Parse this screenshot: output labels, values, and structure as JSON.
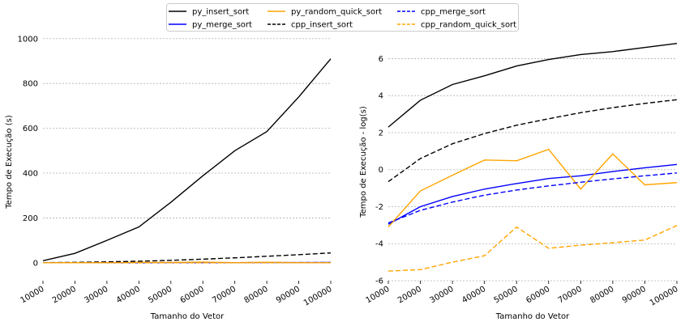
{
  "chart_data": [
    {
      "type": "line",
      "xlabel": "Tamanho do Vetor",
      "ylabel": "Tempo de Execução (s)",
      "x": [
        10000,
        20000,
        30000,
        40000,
        50000,
        60000,
        70000,
        80000,
        90000,
        100000
      ],
      "xlim": [
        10000,
        100000
      ],
      "ylim": [
        -80,
        1010
      ],
      "yticks": [
        0,
        200,
        400,
        600,
        800,
        1000
      ],
      "grid": "y",
      "series": [
        {
          "name": "py_insert_sort",
          "color": "#000000",
          "dash": "solid",
          "values": [
            9,
            42,
            100,
            160,
            270,
            388,
            500,
            585,
            740,
            910
          ]
        },
        {
          "name": "py_merge_sort",
          "color": "#0000ff",
          "dash": "solid",
          "values": [
            0.05,
            0.1,
            0.2,
            0.3,
            0.4,
            0.5,
            0.6,
            0.8,
            1.0,
            1.3
          ]
        },
        {
          "name": "py_random_quick_sort",
          "color": "#ffa500",
          "dash": "solid",
          "values": [
            0.05,
            0.3,
            0.7,
            1.7,
            1.6,
            3.0,
            0.3,
            2.3,
            0.4,
            0.5
          ]
        },
        {
          "name": "cpp_insert_sort",
          "color": "#000000",
          "dash": "dashed",
          "values": [
            0.5,
            1.8,
            4,
            7,
            11,
            16,
            22,
            29,
            36,
            44
          ]
        },
        {
          "name": "cpp_merge_sort",
          "color": "#0000ff",
          "dash": "dashed",
          "values": [
            0.05,
            0.1,
            0.17,
            0.25,
            0.33,
            0.41,
            0.5,
            0.6,
            0.7,
            0.8
          ]
        },
        {
          "name": "cpp_random_quick_sort",
          "color": "#ffa500",
          "dash": "dashed",
          "values": [
            0.004,
            0.005,
            0.007,
            0.009,
            0.045,
            0.014,
            0.017,
            0.019,
            0.022,
            0.05
          ]
        }
      ]
    },
    {
      "type": "line",
      "xlabel": "Tamanho do Vetor",
      "ylabel": "Tempo de Execução - log(s)",
      "x": [
        10000,
        20000,
        30000,
        40000,
        50000,
        60000,
        70000,
        80000,
        90000,
        100000
      ],
      "xlim": [
        10000,
        100000
      ],
      "ylim": [
        -6,
        7.2
      ],
      "yticks": [
        -6,
        -4,
        -2,
        0,
        2,
        4,
        6
      ],
      "grid": "y",
      "series": [
        {
          "name": "py_insert_sort",
          "color": "#000000",
          "dash": "solid",
          "values": [
            2.3,
            3.75,
            4.6,
            5.07,
            5.6,
            5.95,
            6.22,
            6.38,
            6.6,
            6.82
          ]
        },
        {
          "name": "py_merge_sort",
          "color": "#0000ff",
          "dash": "solid",
          "values": [
            -2.95,
            -2.0,
            -1.45,
            -1.05,
            -0.75,
            -0.48,
            -0.33,
            -0.1,
            0.1,
            0.28
          ]
        },
        {
          "name": "py_random_quick_sort",
          "color": "#ffa500",
          "dash": "solid",
          "values": [
            -3.1,
            -1.15,
            -0.3,
            0.52,
            0.48,
            1.1,
            -1.05,
            0.85,
            -0.82,
            -0.7
          ]
        },
        {
          "name": "cpp_insert_sort",
          "color": "#000000",
          "dash": "dashed",
          "values": [
            -0.65,
            0.6,
            1.4,
            1.95,
            2.4,
            2.75,
            3.08,
            3.35,
            3.58,
            3.78
          ]
        },
        {
          "name": "cpp_merge_sort",
          "color": "#0000ff",
          "dash": "dashed",
          "values": [
            -2.88,
            -2.2,
            -1.75,
            -1.38,
            -1.1,
            -0.88,
            -0.68,
            -0.5,
            -0.33,
            -0.18
          ]
        },
        {
          "name": "cpp_random_quick_sort",
          "color": "#ffa500",
          "dash": "dashed",
          "values": [
            -5.48,
            -5.4,
            -5.0,
            -4.65,
            -3.1,
            -4.25,
            -4.08,
            -3.95,
            -3.8,
            -3.02
          ]
        }
      ]
    }
  ]
}
